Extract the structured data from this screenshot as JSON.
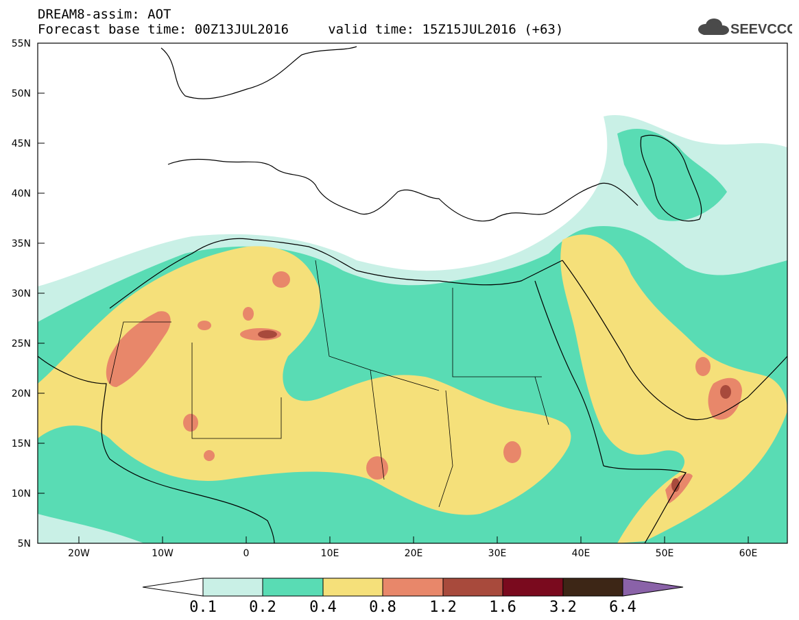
{
  "header": {
    "line1": "DREAM8-assim: AOT",
    "line2": "Forecast base time: 00Z13JUL2016     valid time: 15Z15JUL2016 (+63)"
  },
  "logo": {
    "text": "SEEVCCC",
    "icon": "cloud-icon"
  },
  "axes": {
    "lat_labels": [
      "55N",
      "50N",
      "45N",
      "40N",
      "35N",
      "30N",
      "25N",
      "20N",
      "15N",
      "10N",
      "5N"
    ],
    "lon_labels": [
      "20W",
      "10W",
      "0",
      "10E",
      "20E",
      "30E",
      "40E",
      "50E",
      "60E"
    ]
  },
  "colorbar": {
    "labels": [
      "0.1",
      "0.2",
      "0.4",
      "0.8",
      "1.2",
      "1.6",
      "3.2",
      "6.4"
    ],
    "colors": [
      "#ffffff",
      "#c9f0e6",
      "#59dcb4",
      "#f5e07a",
      "#e8876a",
      "#a84a3c",
      "#7a0a1e",
      "#3d2616",
      "#8a62a8"
    ]
  },
  "map_colors": {
    "level_0_1": "#c9f0e6",
    "level_0_2": "#59dcb4",
    "level_0_4": "#f5e07a",
    "level_0_8": "#e8876a",
    "level_1_2": "#a84a3c"
  }
}
